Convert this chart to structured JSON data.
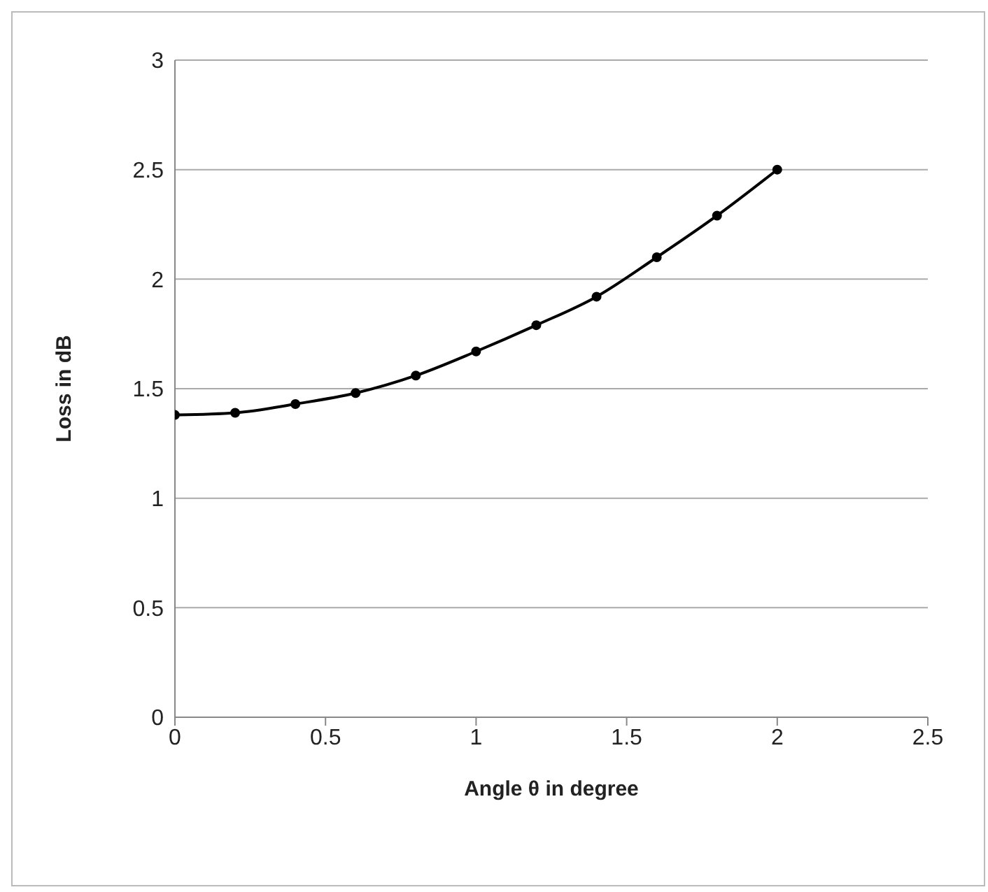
{
  "chart_data": {
    "type": "line",
    "xlabel": "Angle θ in degree",
    "ylabel": "Loss in dB",
    "x": [
      0,
      0.2,
      0.4,
      0.6,
      0.8,
      1,
      1.2,
      1.4,
      1.6,
      1.8,
      2
    ],
    "series": [
      {
        "color": "#000000",
        "values": [
          1.38,
          1.39,
          1.43,
          1.48,
          1.56,
          1.67,
          1.79,
          1.92,
          2.1,
          2.29,
          2.5
        ]
      }
    ],
    "xlim": [
      0,
      2.5
    ],
    "xticks": [
      0,
      0.5,
      1,
      1.5,
      2,
      2.5
    ],
    "ylim": [
      0,
      3
    ],
    "yticks": [
      0,
      0.5,
      1,
      1.5,
      2,
      2.5,
      3
    ],
    "grid": "y",
    "legend": false,
    "marker": "circle",
    "line_style": "solid"
  }
}
